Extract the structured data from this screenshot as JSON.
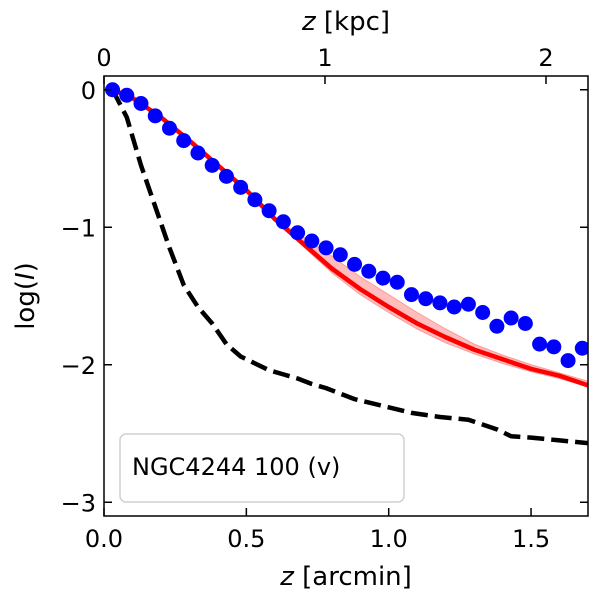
{
  "chart_data": {
    "type": "line",
    "title": "",
    "xlabel_italic": "z",
    "xlabel_rest": " [arcmin]",
    "x2label_italic": "z",
    "x2label_rest": " [kpc]",
    "ylabel_pre": "log(",
    "ylabel_italic": "I",
    "ylabel_post": ")",
    "xlim": [
      0.0,
      1.7
    ],
    "ylim": [
      -3.1,
      0.1
    ],
    "x2lim": [
      0.0,
      2.19
    ],
    "x_ticks": [
      {
        "v": 0.0,
        "label": "0.0"
      },
      {
        "v": 0.5,
        "label": "0.5"
      },
      {
        "v": 1.0,
        "label": "1.0"
      },
      {
        "v": 1.5,
        "label": "1.5"
      }
    ],
    "x2_ticks": [
      {
        "v": 0,
        "label": "0"
      },
      {
        "v": 1,
        "label": "1"
      },
      {
        "v": 2,
        "label": "2"
      }
    ],
    "y_ticks": [
      {
        "v": 0,
        "label": "0"
      },
      {
        "v": -1,
        "label": "−1"
      },
      {
        "v": -2,
        "label": "−2"
      },
      {
        "v": -3,
        "label": "−3"
      }
    ],
    "legend_label": "NGC4244 100 (v)",
    "legend_location": "lower-left",
    "series": [
      {
        "name": "observed",
        "kind": "scatter",
        "color": "#0000ff",
        "x": [
          0.03,
          0.08,
          0.13,
          0.18,
          0.23,
          0.28,
          0.33,
          0.38,
          0.43,
          0.48,
          0.53,
          0.58,
          0.63,
          0.68,
          0.73,
          0.78,
          0.83,
          0.88,
          0.93,
          0.98,
          1.03,
          1.08,
          1.13,
          1.18,
          1.23,
          1.28,
          1.33,
          1.38,
          1.43,
          1.48,
          1.53,
          1.58,
          1.63,
          1.68
        ],
        "y": [
          0.0,
          -0.04,
          -0.1,
          -0.19,
          -0.28,
          -0.37,
          -0.46,
          -0.55,
          -0.63,
          -0.71,
          -0.8,
          -0.88,
          -0.96,
          -1.04,
          -1.1,
          -1.15,
          -1.2,
          -1.27,
          -1.32,
          -1.37,
          -1.4,
          -1.49,
          -1.52,
          -1.55,
          -1.58,
          -1.56,
          -1.62,
          -1.72,
          -1.66,
          -1.7,
          -1.85,
          -1.87,
          -1.97,
          -1.88
        ]
      },
      {
        "name": "model",
        "kind": "line",
        "color": "#ff0000",
        "x": [
          0.03,
          0.1,
          0.2,
          0.3,
          0.4,
          0.5,
          0.6,
          0.7,
          0.8,
          0.9,
          1.0,
          1.1,
          1.2,
          1.3,
          1.4,
          1.5,
          1.6,
          1.7
        ],
        "y": [
          0.0,
          -0.06,
          -0.2,
          -0.37,
          -0.55,
          -0.73,
          -0.94,
          -1.12,
          -1.3,
          -1.45,
          -1.58,
          -1.7,
          -1.8,
          -1.89,
          -1.96,
          -2.03,
          -2.08,
          -2.15
        ]
      },
      {
        "name": "model-uncertainty",
        "kind": "band",
        "color": "#ff9999",
        "x": [
          0.6,
          0.7,
          0.8,
          0.9,
          1.0,
          1.1,
          1.2,
          1.3,
          1.4,
          1.5,
          1.6,
          1.7
        ],
        "upper": [
          -0.94,
          -1.07,
          -1.21,
          -1.36,
          -1.49,
          -1.62,
          -1.74,
          -1.85,
          -1.93,
          -2.0,
          -2.06,
          -2.12
        ],
        "lower": [
          -0.94,
          -1.14,
          -1.33,
          -1.49,
          -1.62,
          -1.74,
          -1.84,
          -1.92,
          -1.99,
          -2.05,
          -2.1,
          -2.16
        ]
      },
      {
        "name": "psf",
        "kind": "dashed-line",
        "color": "#000000",
        "x": [
          0.03,
          0.08,
          0.13,
          0.18,
          0.23,
          0.28,
          0.33,
          0.38,
          0.43,
          0.48,
          0.53,
          0.58,
          0.63,
          0.68,
          0.73,
          0.78,
          0.88,
          0.98,
          1.08,
          1.18,
          1.28,
          1.38,
          1.43,
          1.5,
          1.6,
          1.7
        ],
        "y": [
          0.0,
          -0.2,
          -0.55,
          -0.85,
          -1.15,
          -1.42,
          -1.58,
          -1.7,
          -1.85,
          -1.94,
          -1.99,
          -2.04,
          -2.07,
          -2.1,
          -2.14,
          -2.17,
          -2.25,
          -2.3,
          -2.35,
          -2.38,
          -2.4,
          -2.47,
          -2.52,
          -2.53,
          -2.55,
          -2.57
        ]
      }
    ]
  }
}
